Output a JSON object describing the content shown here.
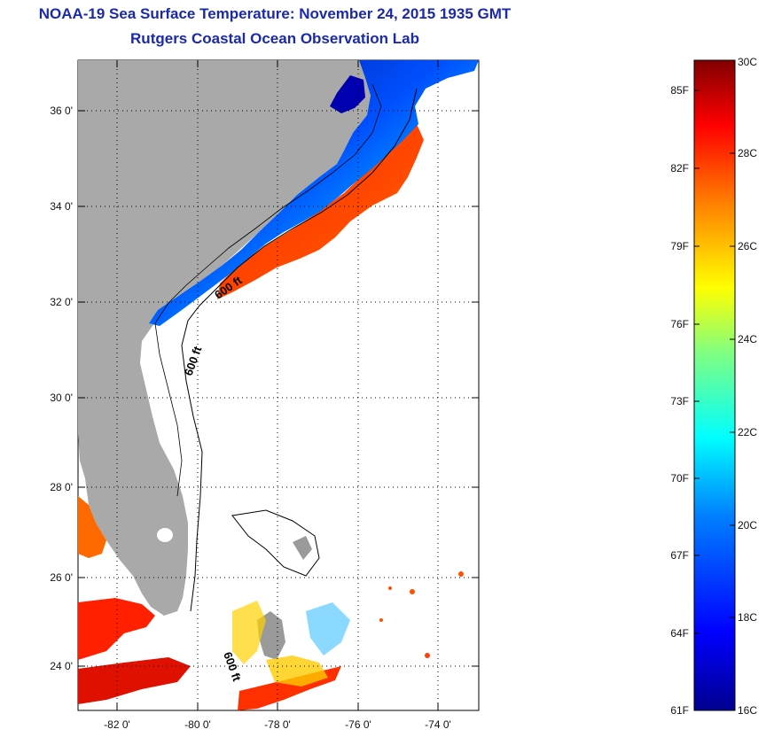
{
  "title": "NOAA-19 Sea Surface Temperature:  November 24, 2015 1935 GMT",
  "subtitle": "Rutgers Coastal Ocean Observation Lab",
  "map": {
    "lat_labels": [
      "36 0'",
      "34 0'",
      "32 0'",
      "30 0'",
      "28 0'",
      "26 0'",
      "24 0'"
    ],
    "lon_labels": [
      "-82 0'",
      "-80 0'",
      "-78 0'",
      "-76 0'",
      "-74 0'"
    ],
    "contour_labels": [
      "600 ft",
      "600 ft",
      "600 ft"
    ],
    "land_color": "#a9a9a9",
    "grid": "dotted"
  },
  "colorbar": {
    "fahrenheit_labels": [
      "85F",
      "82F",
      "79F",
      "76F",
      "73F",
      "70F",
      "67F",
      "64F",
      "61F"
    ],
    "celsius_labels": [
      "30C",
      "28C",
      "26C",
      "24C",
      "22C",
      "20C",
      "18C",
      "16C"
    ],
    "min": "16C",
    "max": "30C",
    "colors": [
      "#00008f",
      "#0000ff",
      "#0080ff",
      "#00ffff",
      "#80ff80",
      "#ffff00",
      "#ff8000",
      "#ff0000",
      "#800000"
    ]
  }
}
